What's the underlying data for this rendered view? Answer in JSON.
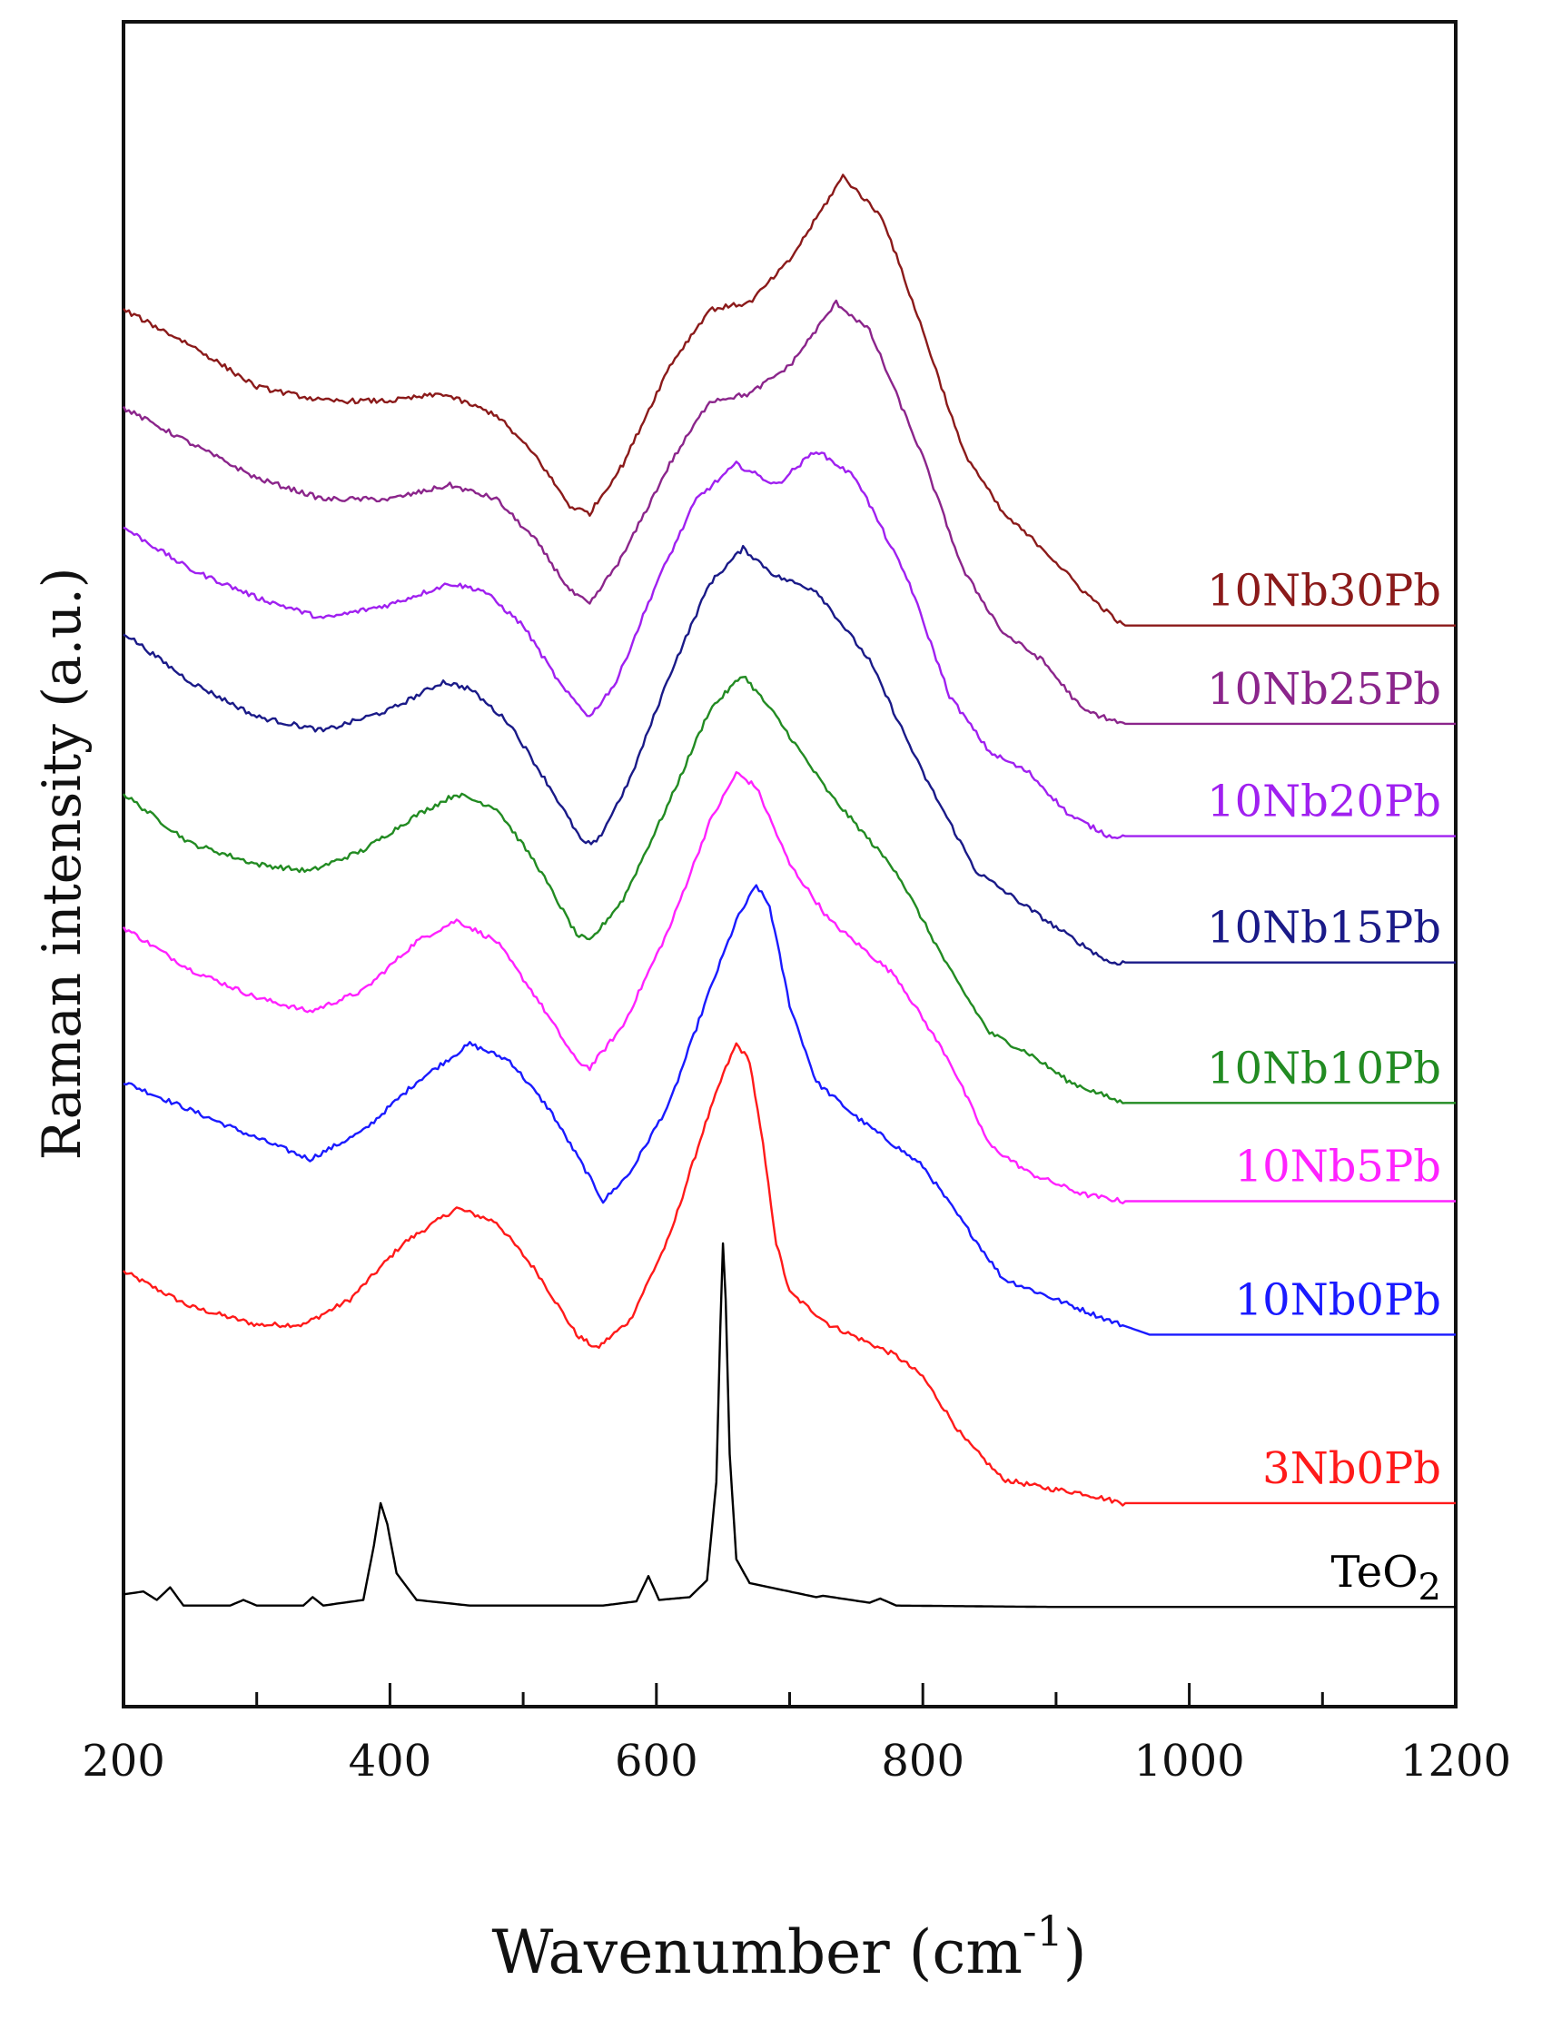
{
  "chart_data": {
    "type": "line",
    "xlabel": "Wavenumber (cm",
    "xlabel_superscript": "-1",
    "xlabel_close": ")",
    "ylabel": "Raman intensity (a.u.)",
    "xlim": [
      200,
      1200
    ],
    "ylim": [
      0,
      12
    ],
    "grid": false,
    "y_ticks_shown": false,
    "x_ticks": [
      200,
      400,
      600,
      800,
      1000,
      1200
    ],
    "x_tick_labels": [
      "200",
      "400",
      "600",
      "800",
      "1000",
      "1200"
    ],
    "legend_placement": "labels at right end of each curve",
    "series": [
      {
        "name": "TeO2",
        "label_main": "TeO",
        "label_sub": "2",
        "color": "#000000",
        "points": [
          [
            200,
            0.8
          ],
          [
            215,
            0.82
          ],
          [
            225,
            0.76
          ],
          [
            235,
            0.85
          ],
          [
            245,
            0.72
          ],
          [
            280,
            0.72
          ],
          [
            290,
            0.76
          ],
          [
            300,
            0.72
          ],
          [
            335,
            0.72
          ],
          [
            342,
            0.78
          ],
          [
            350,
            0.72
          ],
          [
            380,
            0.76
          ],
          [
            388,
            1.15
          ],
          [
            393,
            1.45
          ],
          [
            398,
            1.3
          ],
          [
            405,
            0.95
          ],
          [
            420,
            0.76
          ],
          [
            460,
            0.72
          ],
          [
            560,
            0.72
          ],
          [
            585,
            0.75
          ],
          [
            594,
            0.93
          ],
          [
            602,
            0.76
          ],
          [
            625,
            0.78
          ],
          [
            638,
            0.9
          ],
          [
            645,
            1.6
          ],
          [
            648,
            2.7
          ],
          [
            650,
            3.3
          ],
          [
            652,
            2.9
          ],
          [
            655,
            1.8
          ],
          [
            660,
            1.05
          ],
          [
            670,
            0.88
          ],
          [
            700,
            0.82
          ],
          [
            720,
            0.78
          ],
          [
            725,
            0.79
          ],
          [
            760,
            0.74
          ],
          [
            768,
            0.77
          ],
          [
            780,
            0.72
          ],
          [
            900,
            0.71
          ],
          [
            1200,
            0.71
          ]
        ]
      },
      {
        "name": "3Nb0Pb",
        "label_main": "3Nb0Pb",
        "color": "#ff1a1a",
        "points": [
          [
            200,
            3.1
          ],
          [
            250,
            2.85
          ],
          [
            300,
            2.72
          ],
          [
            335,
            2.72
          ],
          [
            370,
            2.9
          ],
          [
            410,
            3.3
          ],
          [
            450,
            3.55
          ],
          [
            480,
            3.45
          ],
          [
            510,
            3.1
          ],
          [
            540,
            2.65
          ],
          [
            555,
            2.55
          ],
          [
            580,
            2.75
          ],
          [
            610,
            3.35
          ],
          [
            635,
            4.1
          ],
          [
            650,
            4.5
          ],
          [
            660,
            4.72
          ],
          [
            670,
            4.6
          ],
          [
            680,
            4.0
          ],
          [
            690,
            3.3
          ],
          [
            700,
            2.95
          ],
          [
            730,
            2.72
          ],
          [
            780,
            2.5
          ],
          [
            800,
            2.35
          ],
          [
            830,
            1.92
          ],
          [
            860,
            1.62
          ],
          [
            890,
            1.56
          ],
          [
            920,
            1.52
          ],
          [
            950,
            1.45
          ],
          [
            1200,
            1.45
          ]
        ]
      },
      {
        "name": "10Nb0Pb",
        "label_main": "10Nb0Pb",
        "color": "#1a1aff",
        "points": [
          [
            200,
            4.45
          ],
          [
            250,
            4.25
          ],
          [
            300,
            4.05
          ],
          [
            340,
            3.9
          ],
          [
            380,
            4.1
          ],
          [
            420,
            4.45
          ],
          [
            460,
            4.72
          ],
          [
            490,
            4.6
          ],
          [
            520,
            4.25
          ],
          [
            545,
            3.85
          ],
          [
            560,
            3.6
          ],
          [
            580,
            3.8
          ],
          [
            610,
            4.3
          ],
          [
            640,
            5.1
          ],
          [
            660,
            5.6
          ],
          [
            675,
            5.85
          ],
          [
            685,
            5.7
          ],
          [
            700,
            5.0
          ],
          [
            720,
            4.45
          ],
          [
            750,
            4.2
          ],
          [
            800,
            3.85
          ],
          [
            830,
            3.45
          ],
          [
            860,
            3.05
          ],
          [
            900,
            2.9
          ],
          [
            940,
            2.75
          ],
          [
            970,
            2.65
          ],
          [
            1200,
            2.65
          ]
        ]
      },
      {
        "name": "10Nb5Pb",
        "label_main": "10Nb5Pb",
        "color": "#ff22ff",
        "points": [
          [
            200,
            5.55
          ],
          [
            250,
            5.25
          ],
          [
            300,
            5.05
          ],
          [
            340,
            4.95
          ],
          [
            380,
            5.1
          ],
          [
            420,
            5.45
          ],
          [
            450,
            5.6
          ],
          [
            480,
            5.45
          ],
          [
            510,
            5.05
          ],
          [
            540,
            4.6
          ],
          [
            550,
            4.55
          ],
          [
            575,
            4.85
          ],
          [
            610,
            5.55
          ],
          [
            640,
            6.3
          ],
          [
            660,
            6.65
          ],
          [
            675,
            6.55
          ],
          [
            700,
            6.0
          ],
          [
            730,
            5.6
          ],
          [
            780,
            5.2
          ],
          [
            820,
            4.6
          ],
          [
            850,
            4.0
          ],
          [
            880,
            3.8
          ],
          [
            920,
            3.65
          ],
          [
            950,
            3.6
          ],
          [
            1200,
            3.6
          ]
        ]
      },
      {
        "name": "10Nb10Pb",
        "label_main": "10Nb10Pb",
        "color": "#228b22",
        "points": [
          [
            200,
            6.5
          ],
          [
            250,
            6.15
          ],
          [
            300,
            6.0
          ],
          [
            340,
            5.95
          ],
          [
            380,
            6.1
          ],
          [
            420,
            6.35
          ],
          [
            450,
            6.5
          ],
          [
            480,
            6.4
          ],
          [
            510,
            6.0
          ],
          [
            540,
            5.5
          ],
          [
            550,
            5.45
          ],
          [
            575,
            5.75
          ],
          [
            610,
            6.45
          ],
          [
            640,
            7.1
          ],
          [
            665,
            7.35
          ],
          [
            690,
            7.05
          ],
          [
            730,
            6.5
          ],
          [
            780,
            5.95
          ],
          [
            820,
            5.25
          ],
          [
            850,
            4.8
          ],
          [
            880,
            4.65
          ],
          [
            910,
            4.45
          ],
          [
            950,
            4.3
          ],
          [
            1200,
            4.3
          ]
        ]
      },
      {
        "name": "10Nb15Pb",
        "label_main": "10Nb15Pb",
        "color": "#1a1a88",
        "points": [
          [
            200,
            7.65
          ],
          [
            250,
            7.3
          ],
          [
            300,
            7.05
          ],
          [
            350,
            6.95
          ],
          [
            400,
            7.1
          ],
          [
            440,
            7.3
          ],
          [
            460,
            7.25
          ],
          [
            490,
            7.0
          ],
          [
            520,
            6.55
          ],
          [
            545,
            6.15
          ],
          [
            555,
            6.15
          ],
          [
            580,
            6.6
          ],
          [
            610,
            7.35
          ],
          [
            640,
            8.0
          ],
          [
            665,
            8.25
          ],
          [
            690,
            8.05
          ],
          [
            720,
            7.95
          ],
          [
            760,
            7.45
          ],
          [
            800,
            6.65
          ],
          [
            840,
            5.95
          ],
          [
            870,
            5.75
          ],
          [
            900,
            5.55
          ],
          [
            940,
            5.3
          ],
          [
            1200,
            5.3
          ]
        ]
      },
      {
        "name": "10Nb20Pb",
        "label_main": "10Nb20Pb",
        "color": "#a020f0",
        "points": [
          [
            200,
            8.4
          ],
          [
            250,
            8.1
          ],
          [
            300,
            7.9
          ],
          [
            350,
            7.75
          ],
          [
            400,
            7.85
          ],
          [
            445,
            8.0
          ],
          [
            470,
            7.95
          ],
          [
            500,
            7.7
          ],
          [
            530,
            7.25
          ],
          [
            550,
            7.05
          ],
          [
            570,
            7.3
          ],
          [
            600,
            8.0
          ],
          [
            630,
            8.6
          ],
          [
            660,
            8.85
          ],
          [
            690,
            8.7
          ],
          [
            720,
            8.95
          ],
          [
            750,
            8.75
          ],
          [
            790,
            8.0
          ],
          [
            820,
            7.2
          ],
          [
            850,
            6.8
          ],
          [
            880,
            6.65
          ],
          [
            910,
            6.35
          ],
          [
            940,
            6.2
          ],
          [
            1200,
            6.2
          ]
        ]
      },
      {
        "name": "10Nb25Pb",
        "label_main": "10Nb25Pb",
        "color": "#8b258b",
        "points": [
          [
            200,
            9.25
          ],
          [
            250,
            9.0
          ],
          [
            300,
            8.75
          ],
          [
            350,
            8.6
          ],
          [
            400,
            8.6
          ],
          [
            445,
            8.7
          ],
          [
            480,
            8.6
          ],
          [
            510,
            8.3
          ],
          [
            535,
            7.95
          ],
          [
            550,
            7.85
          ],
          [
            575,
            8.2
          ],
          [
            610,
            8.85
          ],
          [
            640,
            9.3
          ],
          [
            670,
            9.35
          ],
          [
            700,
            9.55
          ],
          [
            735,
            10.0
          ],
          [
            760,
            9.8
          ],
          [
            800,
            8.9
          ],
          [
            830,
            8.1
          ],
          [
            860,
            7.65
          ],
          [
            890,
            7.45
          ],
          [
            920,
            7.1
          ],
          [
            950,
            7.0
          ],
          [
            1200,
            7.0
          ]
        ]
      },
      {
        "name": "10Nb30Pb",
        "label_main": "10Nb30Pb",
        "color": "#8b1a1a",
        "points": [
          [
            200,
            9.95
          ],
          [
            250,
            9.7
          ],
          [
            300,
            9.4
          ],
          [
            350,
            9.3
          ],
          [
            400,
            9.3
          ],
          [
            440,
            9.35
          ],
          [
            480,
            9.2
          ],
          [
            510,
            8.9
          ],
          [
            535,
            8.55
          ],
          [
            550,
            8.5
          ],
          [
            575,
            8.85
          ],
          [
            610,
            9.55
          ],
          [
            640,
            9.95
          ],
          [
            670,
            10.0
          ],
          [
            700,
            10.3
          ],
          [
            740,
            10.9
          ],
          [
            770,
            10.6
          ],
          [
            800,
            9.8
          ],
          [
            830,
            8.95
          ],
          [
            860,
            8.5
          ],
          [
            890,
            8.25
          ],
          [
            920,
            7.95
          ],
          [
            950,
            7.7
          ],
          [
            1200,
            7.7
          ]
        ]
      }
    ]
  }
}
